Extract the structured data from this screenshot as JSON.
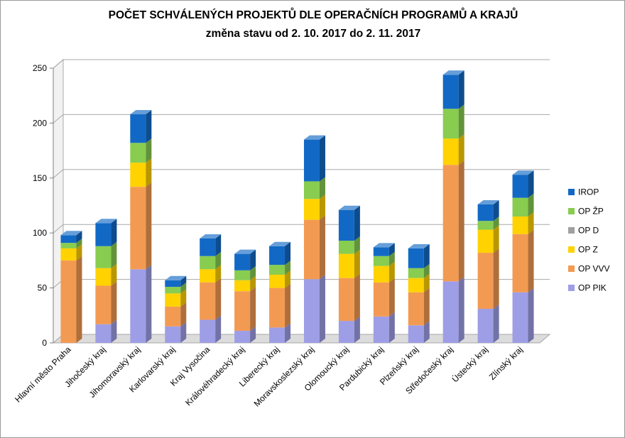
{
  "chart_data": {
    "type": "bar",
    "stacked": true,
    "title": "POČET SCHVÁLENÝCH PROJEKTŮ DLE OPERAČNÍCH PROGRAMŮ A KRAJŮ",
    "subtitle": "změna stavu od 2. 10. 2017 do 2. 11. 2017",
    "xlabel": "",
    "ylabel": "",
    "ylim": [
      0,
      250
    ],
    "yticks": [
      0,
      50,
      100,
      150,
      200,
      250
    ],
    "grid": true,
    "legend_position": "right",
    "categories": [
      "Hlavní město Praha",
      "Jihočeský kraj",
      "Jihomoravský kraj",
      "Karlovarský kraj",
      "Kraj Vysočina",
      "Královéhradecký kraj",
      "Liberecký kraj",
      "Moravskoslezský kraj",
      "Olomoucký kraj",
      "Pardubický kraj",
      "Plzeňský kraj",
      "Středočeský kraj",
      "Ústecký kraj",
      "Zlínský kraj"
    ],
    "series": [
      {
        "name": "OP PIK",
        "color": "#9e9ee6",
        "values": [
          0,
          17,
          67,
          15,
          21,
          11,
          14,
          58,
          20,
          24,
          16,
          56,
          31,
          46
        ]
      },
      {
        "name": "OP VVV",
        "color": "#f39a52",
        "values": [
          75,
          35,
          75,
          18,
          34,
          36,
          36,
          54,
          39,
          31,
          30,
          106,
          51,
          53
        ]
      },
      {
        "name": "OP Z",
        "color": "#ffd200",
        "values": [
          11,
          16,
          22,
          12,
          12,
          10,
          12,
          19,
          22,
          15,
          13,
          24,
          21,
          16
        ]
      },
      {
        "name": "OP D",
        "color": "#a0a0a0",
        "values": [
          0,
          0,
          0,
          0,
          0,
          0,
          0,
          0,
          0,
          0,
          0,
          0,
          0,
          0
        ]
      },
      {
        "name": "OP ŽP",
        "color": "#88cc50",
        "values": [
          5,
          20,
          18,
          6,
          12,
          9,
          9,
          16,
          12,
          9,
          9,
          27,
          8,
          17
        ]
      },
      {
        "name": "IROP",
        "color": "#1269c5",
        "values": [
          7,
          21,
          26,
          6,
          16,
          15,
          17,
          38,
          28,
          8,
          18,
          31,
          15,
          21
        ]
      }
    ],
    "legend_order": [
      "IROP",
      "OP ŽP",
      "OP D",
      "OP Z",
      "OP VVV",
      "OP PIK"
    ]
  }
}
